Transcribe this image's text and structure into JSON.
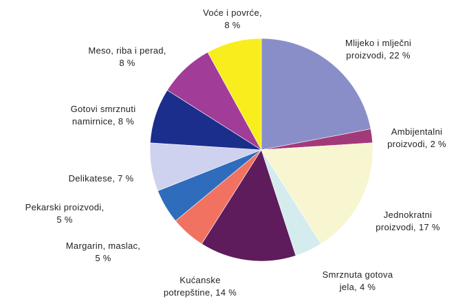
{
  "chart_data": {
    "type": "pie",
    "start_angle_deg": 0,
    "direction": "clockwise",
    "slices": [
      {
        "label_lines": [
          "Mlijeko i mlječni",
          "proizvodi, 22 %"
        ],
        "value": 22,
        "color": "#8a8ec8"
      },
      {
        "label_lines": [
          "Ambijentalni",
          "proizvodi, 2 %"
        ],
        "value": 2,
        "color": "#a23a7a"
      },
      {
        "label_lines": [
          "Jednokratni",
          "proizvodi, 17 %"
        ],
        "value": 17,
        "color": "#f8f6d0"
      },
      {
        "label_lines": [
          "Smrznuta gotova",
          "jela, 4 %"
        ],
        "value": 4,
        "color": "#d4ecee"
      },
      {
        "label_lines": [
          "Kućanske",
          "potrepštine, 14 %"
        ],
        "value": 14,
        "color": "#5e1c5c"
      },
      {
        "label_lines": [
          "Margarin, maslac,",
          "5 %"
        ],
        "value": 5,
        "color": "#f27262"
      },
      {
        "label_lines": [
          "Pekarski proizvodi,",
          "5 %"
        ],
        "value": 5,
        "color": "#2f6cbc"
      },
      {
        "label_lines": [
          "Delikatese, 7 %"
        ],
        "value": 7,
        "color": "#cfd2ee"
      },
      {
        "label_lines": [
          "Gotovi smrznuti",
          "namirnice, 8 %"
        ],
        "value": 8,
        "color": "#1c2e8c"
      },
      {
        "label_lines": [
          "Meso, riba i perad,",
          "8 %"
        ],
        "value": 8,
        "color": "#a13c98"
      },
      {
        "label_lines": [
          "Voće i povrće,",
          "8 %"
        ],
        "value": 8,
        "color": "#f8ee1e"
      }
    ]
  }
}
